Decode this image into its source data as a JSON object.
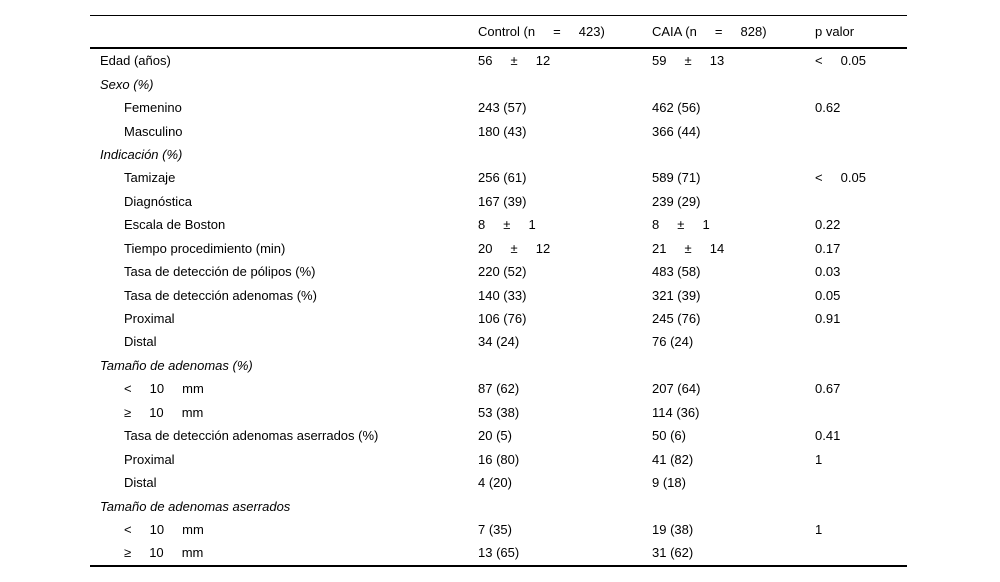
{
  "page": {
    "background": "#ffffff",
    "text_color": "#000000",
    "rule_color": "#000000"
  },
  "table": {
    "header": {
      "label_col": "",
      "control": "Control (n     =     423)",
      "caia": "CAIA (n     =     828)",
      "p": "p valor"
    },
    "rows": [
      {
        "label": "Edad (años)",
        "indent": 0,
        "italic": false,
        "control": "56     ±     12",
        "caia": "59     ±     13",
        "p": "<     0.05"
      },
      {
        "label": "Sexo (%)",
        "indent": 0,
        "italic": true,
        "control": "",
        "caia": "",
        "p": ""
      },
      {
        "label": "Femenino",
        "indent": 1,
        "italic": false,
        "control": "243 (57)",
        "caia": "462 (56)",
        "p": "0.62"
      },
      {
        "label": "Masculino",
        "indent": 1,
        "italic": false,
        "control": "180 (43)",
        "caia": "366 (44)",
        "p": ""
      },
      {
        "label": "Indicación (%)",
        "indent": 0,
        "italic": true,
        "control": "",
        "caia": "",
        "p": ""
      },
      {
        "label": "Tamizaje",
        "indent": 1,
        "italic": false,
        "control": "256 (61)",
        "caia": "589 (71)",
        "p": "<     0.05"
      },
      {
        "label": "Diagnóstica",
        "indent": 1,
        "italic": false,
        "control": "167 (39)",
        "caia": "239 (29)",
        "p": ""
      },
      {
        "label": "Escala de Boston",
        "indent": 1,
        "italic": false,
        "control": "8     ±     1",
        "caia": "8     ±     1",
        "p": "0.22"
      },
      {
        "label": "Tiempo procedimiento (min)",
        "indent": 1,
        "italic": false,
        "control": "20     ±     12",
        "caia": "21     ±     14",
        "p": "0.17"
      },
      {
        "label": "Tasa de detección de pólipos (%)",
        "indent": 1,
        "italic": false,
        "control": "220 (52)",
        "caia": "483 (58)",
        "p": "0.03"
      },
      {
        "label": "Tasa de detección adenomas (%)",
        "indent": 1,
        "italic": false,
        "control": "140 (33)",
        "caia": "321 (39)",
        "p": "0.05"
      },
      {
        "label": "Proximal",
        "indent": 1,
        "italic": false,
        "control": "106 (76)",
        "caia": "245 (76)",
        "p": "0.91"
      },
      {
        "label": "Distal",
        "indent": 1,
        "italic": false,
        "control": "34 (24)",
        "caia": "76 (24)",
        "p": ""
      },
      {
        "label": "Tamaño de adenomas (%)",
        "indent": 0,
        "italic": true,
        "control": "",
        "caia": "",
        "p": ""
      },
      {
        "label": "<     10     mm",
        "indent": 1,
        "italic": false,
        "control": "87 (62)",
        "caia": "207 (64)",
        "p": "0.67"
      },
      {
        "label": "≥     10     mm",
        "indent": 1,
        "italic": false,
        "control": "53 (38)",
        "caia": "114 (36)",
        "p": ""
      },
      {
        "label": "Tasa de detección adenomas aserrados (%)",
        "indent": 1,
        "italic": false,
        "control": "20 (5)",
        "caia": "50 (6)",
        "p": "0.41"
      },
      {
        "label": "Proximal",
        "indent": 1,
        "italic": false,
        "control": "16 (80)",
        "caia": "41 (82)",
        "p": "1"
      },
      {
        "label": "Distal",
        "indent": 1,
        "italic": false,
        "control": "4 (20)",
        "caia": "9 (18)",
        "p": ""
      },
      {
        "label": "Tamaño de adenomas aserrados",
        "indent": 0,
        "italic": true,
        "control": "",
        "caia": "",
        "p": ""
      },
      {
        "label": "<     10     mm",
        "indent": 1,
        "italic": false,
        "control": "7 (35)",
        "caia": "19 (38)",
        "p": "1"
      },
      {
        "label": "≥     10     mm",
        "indent": 1,
        "italic": false,
        "control": "13 (65)",
        "caia": "31 (62)",
        "p": ""
      }
    ]
  }
}
